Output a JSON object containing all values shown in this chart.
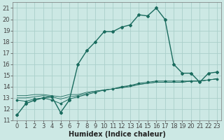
{
  "xlabel": "Humidex (Indice chaleur)",
  "background_color": "#cce8e4",
  "grid_color": "#aacfca",
  "line_color": "#1a6b5e",
  "xlim": [
    -0.5,
    23.5
  ],
  "ylim": [
    11,
    21.5
  ],
  "xticks": [
    0,
    1,
    2,
    3,
    4,
    5,
    6,
    7,
    8,
    9,
    10,
    11,
    12,
    13,
    14,
    15,
    16,
    17,
    18,
    19,
    20,
    21,
    22,
    23
  ],
  "yticks": [
    11,
    12,
    13,
    14,
    15,
    16,
    17,
    18,
    19,
    20,
    21
  ],
  "series1_y": [
    11.5,
    12.5,
    12.8,
    13.0,
    13.1,
    11.7,
    12.8,
    16.0,
    17.2,
    18.0,
    18.9,
    18.9,
    19.3,
    19.5,
    20.4,
    20.3,
    21.0,
    20.0,
    16.0,
    15.2,
    15.2,
    14.4,
    15.2,
    15.3
  ],
  "series2_y": [
    12.8,
    12.7,
    12.9,
    13.0,
    12.8,
    12.5,
    12.9,
    13.1,
    13.3,
    13.5,
    13.7,
    13.8,
    14.0,
    14.1,
    14.3,
    14.4,
    14.5,
    14.5,
    14.5,
    14.5,
    14.5,
    14.5,
    14.6,
    14.7
  ],
  "series3_y": [
    13.0,
    13.0,
    13.1,
    13.2,
    13.1,
    12.9,
    13.1,
    13.2,
    13.4,
    13.6,
    13.7,
    13.8,
    13.9,
    14.0,
    14.2,
    14.3,
    14.4,
    14.4,
    14.4,
    14.4,
    14.5,
    14.5,
    14.6,
    14.7
  ],
  "series4_y": [
    13.2,
    13.2,
    13.3,
    13.3,
    13.2,
    13.1,
    13.3,
    13.3,
    13.5,
    13.6,
    13.7,
    13.8,
    13.9,
    14.1,
    14.2,
    14.3,
    14.4,
    14.4,
    14.4,
    14.4,
    14.5,
    14.5,
    14.6,
    14.7
  ],
  "fontsize": 6,
  "xlabel_fontsize": 7
}
